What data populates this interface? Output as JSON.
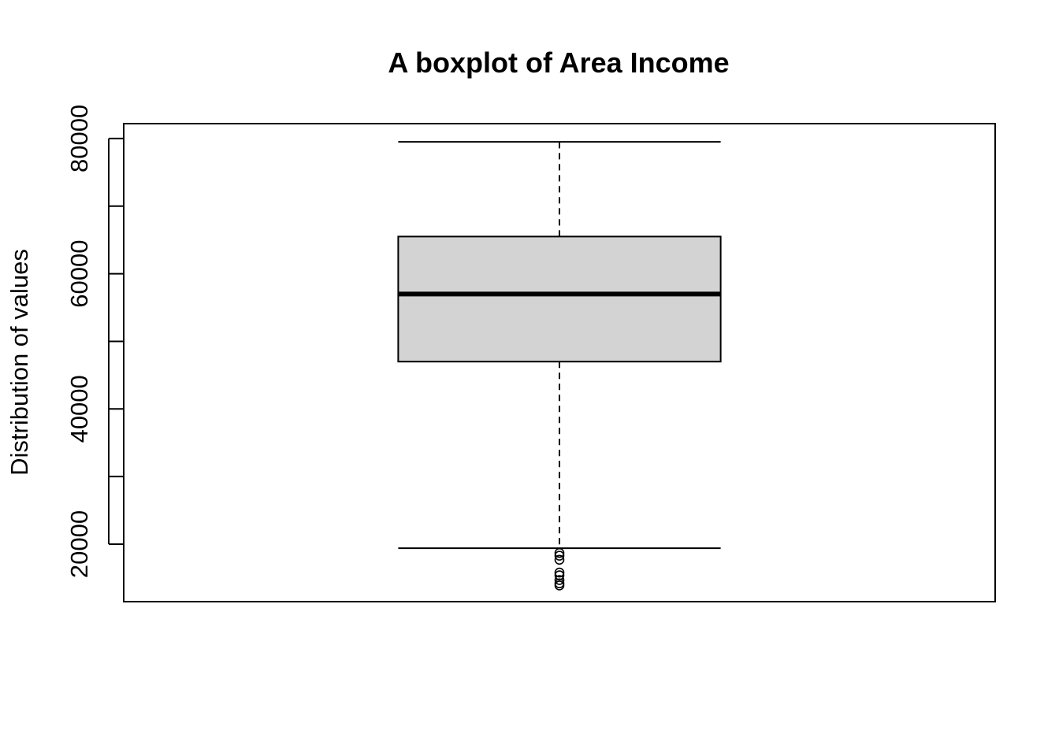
{
  "chart_data": {
    "type": "boxplot",
    "title": "A boxplot of Area Income",
    "xlabel": "",
    "ylabel": "Distribution of values",
    "ylim": [
      11500,
      82200
    ],
    "y_ticks": [
      20000,
      30000,
      40000,
      50000,
      60000,
      70000,
      80000
    ],
    "y_tick_labels": [
      "20000",
      "",
      "40000",
      "",
      "60000",
      "",
      "80000"
    ],
    "grid": false,
    "box_fill": "#d3d3d3",
    "stroke": "#000000",
    "boxes": [
      {
        "whisker_low": 19400,
        "q1": 47000,
        "median": 57000,
        "q3": 65500,
        "whisker_high": 79500,
        "outliers": [
          18700,
          18300,
          17700,
          15800,
          15400,
          14700,
          14200,
          13900
        ]
      }
    ]
  }
}
